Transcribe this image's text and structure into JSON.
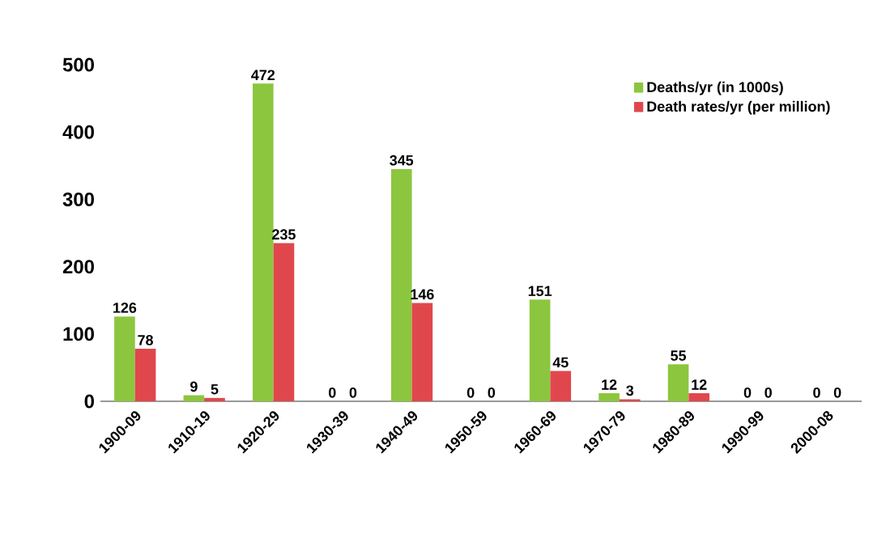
{
  "chart_data": {
    "type": "bar",
    "categories": [
      "1900-09",
      "1910-19",
      "1920-29",
      "1930-39",
      "1940-49",
      "1950-59",
      "1960-69",
      "1970-79",
      "1980-89",
      "1990-99",
      "2000-08"
    ],
    "series": [
      {
        "name": "Deaths/yr (in 1000s)",
        "color": "#8cc63e",
        "values": [
          126,
          9,
          472,
          0,
          345,
          0,
          151,
          12,
          55,
          0,
          0
        ]
      },
      {
        "name": "Death rates/yr (per million)",
        "color": "#e0474c",
        "values": [
          78,
          5,
          235,
          0,
          146,
          0,
          45,
          3,
          12,
          0,
          0
        ]
      }
    ],
    "ylim": [
      0,
      500
    ],
    "yticks": [
      0,
      100,
      200,
      300,
      400,
      500
    ],
    "data_labels": true,
    "legend": "top right",
    "grid": false
  }
}
